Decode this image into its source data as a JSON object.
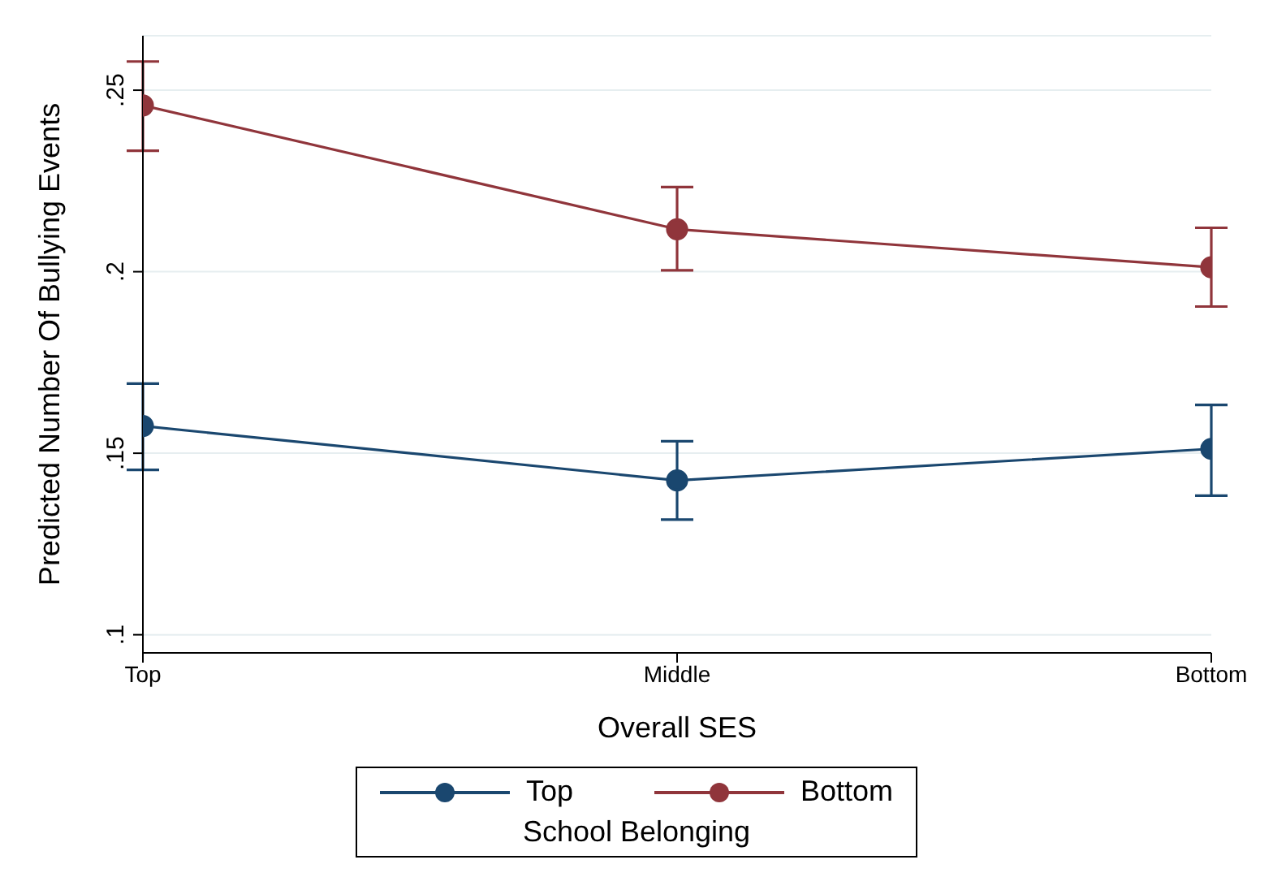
{
  "chart_data": {
    "type": "line",
    "xlabel": "Overall SES",
    "ylabel": "Predicted Number Of Bullying Events",
    "legend_title": "School Belonging",
    "categories": [
      "Top",
      "Middle",
      "Bottom"
    ],
    "series": [
      {
        "name": "Top",
        "color": "#1a476f",
        "values": [
          0.1575,
          0.1425,
          0.1512
        ],
        "errors": [
          [
            0.1454,
            0.1692
          ],
          [
            0.1317,
            0.1533
          ],
          [
            0.1383,
            0.1633
          ]
        ]
      },
      {
        "name": "Bottom",
        "color": "#90353b",
        "values": [
          0.2458,
          0.2117,
          0.2012
        ],
        "errors": [
          [
            0.2333,
            0.2579
          ],
          [
            0.2004,
            0.2233
          ],
          [
            0.1904,
            0.2121
          ]
        ]
      }
    ],
    "ylim": [
      0.095,
      0.265
    ],
    "yticks": [
      {
        "value": 0.1,
        "label": ".1"
      },
      {
        "value": 0.15,
        "label": ".15"
      },
      {
        "value": 0.2,
        "label": ".2"
      },
      {
        "value": 0.25,
        "label": ".25"
      }
    ],
    "grid": "y",
    "legend": "bottom",
    "marker": "circle",
    "line_style": "solid"
  }
}
